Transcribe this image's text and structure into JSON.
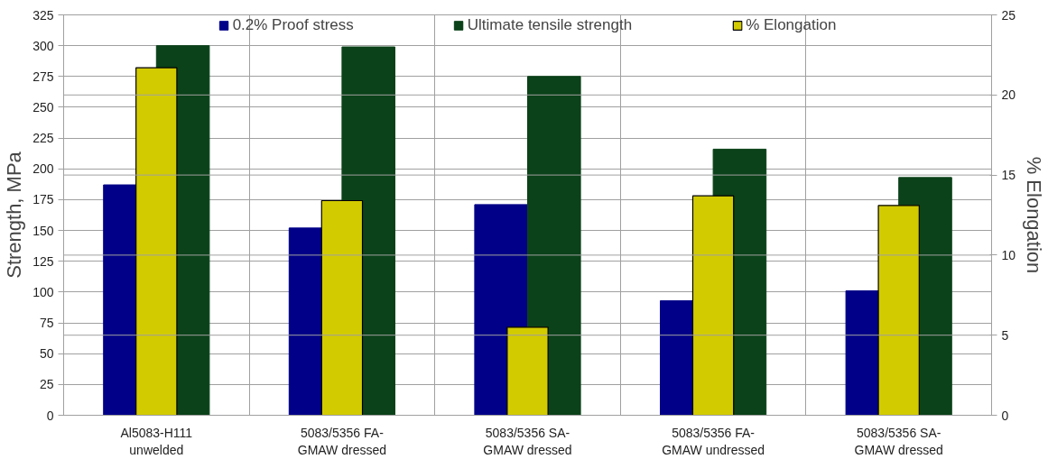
{
  "chart_data": {
    "type": "bar",
    "categories": [
      "Al5083-H111\nunwelded",
      "5083/5356 FA-\nGMAW dressed",
      "5083/5356 SA-\nGMAW dressed",
      "5083/5356 FA-\nGMAW undressed",
      "5083/5356 SA-\nGMAW dressed"
    ],
    "series": [
      {
        "name": "0.2% Proof stress",
        "color": "#000088",
        "values": [
          187,
          152,
          171,
          93,
          101
        ]
      },
      {
        "name": "Ultimate tensile strength",
        "color": "#0b4219",
        "values": [
          300,
          299,
          275,
          216,
          193
        ]
      },
      {
        "name": "% Elongation",
        "color": "#d2cb00",
        "values": [
          21.7,
          13.4,
          5.5,
          13.7,
          13.1
        ],
        "axis": "y2"
      }
    ],
    "ylabel": "Strength, MPa",
    "y2label": "% Elongation",
    "ylim": [
      0,
      325
    ],
    "yticks": [
      0,
      25,
      50,
      75,
      100,
      125,
      150,
      175,
      200,
      225,
      250,
      275,
      300,
      325
    ],
    "y2lim": [
      0,
      25
    ],
    "y2ticks": [
      0,
      5,
      10,
      15,
      20,
      25
    ],
    "grid": true,
    "legend": "top"
  }
}
